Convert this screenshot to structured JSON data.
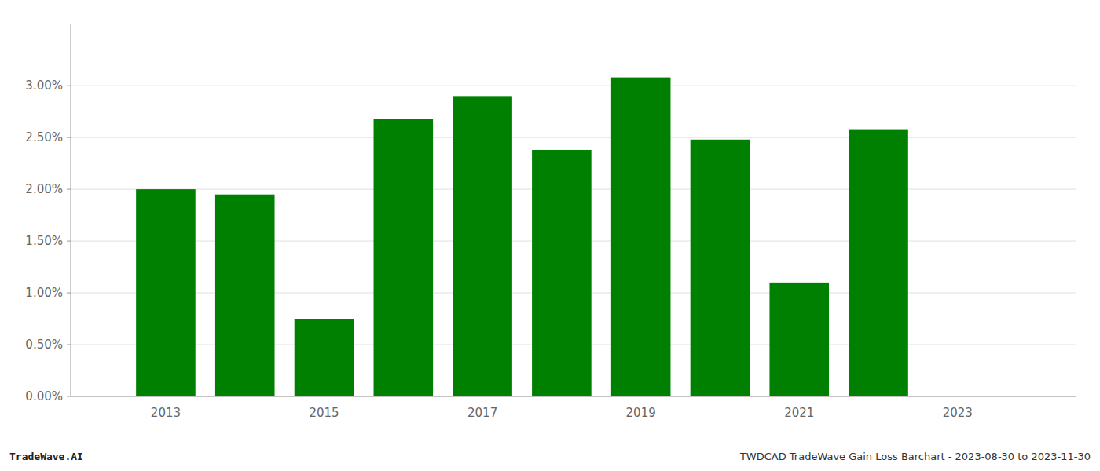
{
  "chart_data": {
    "type": "bar",
    "x": [
      2013,
      2014,
      2015,
      2016,
      2017,
      2018,
      2019,
      2020,
      2021,
      2022,
      2023
    ],
    "values": [
      0.02,
      0.0195,
      0.0075,
      0.0268,
      0.029,
      0.0238,
      0.0308,
      0.0248,
      0.011,
      0.0258,
      null
    ],
    "color": "#008000",
    "xlim": [
      2011.8,
      2024.5
    ],
    "xticks": [
      2013,
      2015,
      2017,
      2019,
      2021,
      2023
    ],
    "ylim": [
      0,
      0.036
    ],
    "yticks": [
      {
        "value": 0.0,
        "label": "0.00%"
      },
      {
        "value": 0.005,
        "label": "0.50%"
      },
      {
        "value": 0.01,
        "label": "1.00%"
      },
      {
        "value": 0.015,
        "label": "1.50%"
      },
      {
        "value": 0.02,
        "label": "2.00%"
      },
      {
        "value": 0.025,
        "label": "2.50%"
      },
      {
        "value": 0.03,
        "label": "3.00%"
      }
    ],
    "grid": true,
    "annotations": [
      "TradeWave.AI",
      "TWDCAD TradeWave Gain Loss Barchart - 2023-08-30 to 2023-11-30"
    ]
  }
}
